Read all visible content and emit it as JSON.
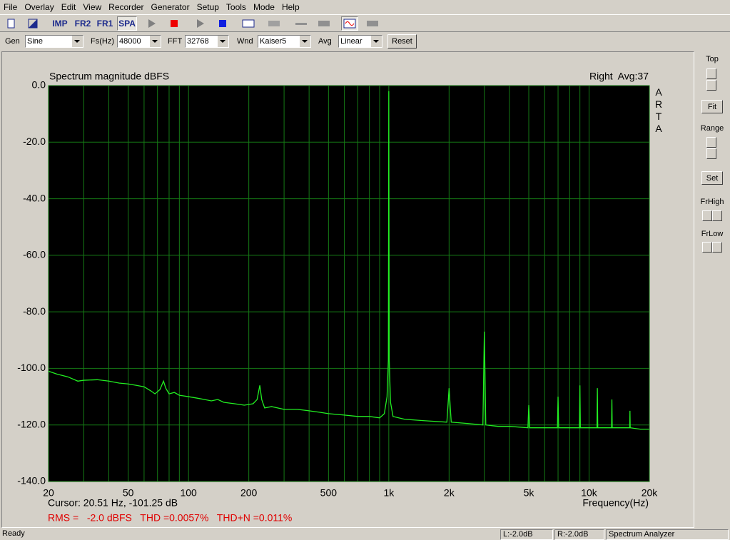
{
  "menu": [
    "File",
    "Overlay",
    "Edit",
    "View",
    "Recorder",
    "Generator",
    "Setup",
    "Tools",
    "Mode",
    "Help"
  ],
  "toolbar": {
    "imp": "IMP",
    "fr2": "FR2",
    "fr1": "FR1",
    "spa": "SPA"
  },
  "controls": {
    "gen_label": "Gen",
    "gen": "Sine",
    "fs_label": "Fs(Hz)",
    "fs": "48000",
    "fft_label": "FFT",
    "fft": "32768",
    "wnd_label": "Wnd",
    "wnd": "Kaiser5",
    "avg_label": "Avg",
    "avg": "Linear",
    "reset": "Reset"
  },
  "side_panel": {
    "top": "Top",
    "fit": "Fit",
    "range": "Range",
    "set": "Set",
    "frhigh": "FrHigh",
    "frlow": "FrLow"
  },
  "status": [
    "Ready",
    "L:-2.0dB",
    "R:-2.0dB",
    "Spectrum Analyzer"
  ],
  "chart_data": {
    "type": "line",
    "title": "Spectrum magnitude dBFS",
    "annotation": "Right  Avg:37",
    "side_label": "ARTA",
    "cursor": "Cursor: 20.51 Hz, -101.25 dB",
    "measurement": "RMS =   -2.0 dBFS   THD =0.0057%   THD+N =0.011%",
    "xlabel": "Frequency(Hz)",
    "xscale": "log",
    "grid": true,
    "color": "#22ee22",
    "xlim": [
      20,
      20000
    ],
    "ylim": [
      -140,
      0
    ],
    "xticks": [
      20,
      50,
      100,
      200,
      500,
      {
        "value": 1000,
        "label": "1k"
      },
      {
        "value": 2000,
        "label": "2k"
      },
      {
        "value": 5000,
        "label": "5k"
      },
      {
        "value": 10000,
        "label": "10k"
      },
      {
        "value": 20000,
        "label": "20k"
      }
    ],
    "yticks": [
      {
        "value": 0,
        "label": "0.0"
      },
      {
        "value": -20,
        "label": "-20.0"
      },
      {
        "value": -40,
        "label": "-40.0"
      },
      {
        "value": -60,
        "label": "-60.0"
      },
      {
        "value": -80,
        "label": "-80.0"
      },
      {
        "value": -100,
        "label": "-100.0"
      },
      {
        "value": -120,
        "label": "-120.0"
      },
      {
        "value": -140,
        "label": "-140.0"
      }
    ],
    "xgrid": [
      20,
      30,
      40,
      50,
      60,
      70,
      80,
      90,
      100,
      200,
      300,
      400,
      500,
      600,
      700,
      800,
      900,
      1000,
      2000,
      3000,
      4000,
      5000,
      6000,
      7000,
      8000,
      9000,
      10000,
      20000
    ],
    "x": [
      20,
      22,
      25,
      28,
      30,
      35,
      40,
      45,
      50,
      55,
      60,
      65,
      68,
      72,
      75,
      77,
      80,
      85,
      90,
      100,
      110,
      120,
      130,
      140,
      150,
      170,
      190,
      210,
      220,
      227,
      232,
      240,
      260,
      300,
      350,
      400,
      450,
      500,
      600,
      700,
      800,
      900,
      950,
      980,
      995,
      1000,
      1005,
      1020,
      1050,
      1200,
      1500,
      1950,
      2000,
      2050,
      2500,
      2950,
      3000,
      3050,
      3500,
      4000,
      4950,
      5000,
      5050,
      6000,
      6950,
      7000,
      7050,
      8000,
      8950,
      9000,
      9050,
      10000,
      10950,
      11000,
      11050,
      12950,
      13000,
      13050,
      15000,
      15950,
      16000,
      16050,
      18000,
      20000
    ],
    "values": [
      -101,
      -102,
      -103,
      -104.5,
      -104.2,
      -104,
      -104.5,
      -105.2,
      -105.5,
      -106,
      -106.5,
      -108,
      -109,
      -107.5,
      -104.5,
      -107,
      -109,
      -108.5,
      -109.5,
      -110,
      -110.5,
      -111,
      -111.5,
      -111,
      -112,
      -112.5,
      -113,
      -112.5,
      -111,
      -106,
      -111,
      -114,
      -113.5,
      -114.5,
      -114.5,
      -115,
      -115.5,
      -116,
      -116.5,
      -117,
      -117,
      -117.5,
      -116,
      -110,
      -97,
      -2,
      -97,
      -112,
      -117,
      -118,
      -118.5,
      -119,
      -107,
      -119,
      -119.5,
      -120,
      -87,
      -120,
      -120.5,
      -120.5,
      -121,
      -113,
      -121,
      -121,
      -121,
      -110,
      -121,
      -121,
      -121,
      -106,
      -121,
      -121,
      -121,
      -107,
      -121,
      -121,
      -111,
      -121,
      -121,
      -121,
      -115,
      -121,
      -121.5,
      -121.5
    ]
  }
}
